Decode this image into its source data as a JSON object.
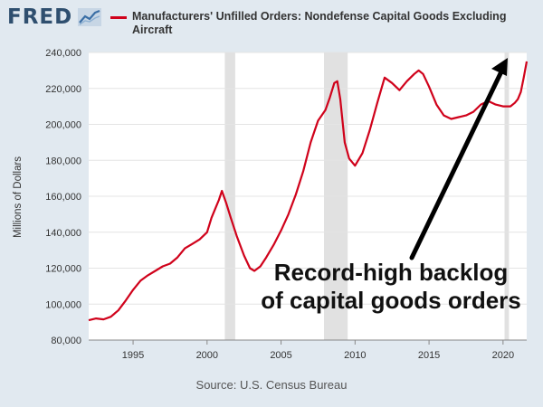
{
  "header": {
    "logo_text": "FRED",
    "logo_icon": "line-chart-icon",
    "series_title": "Manufacturers' Unfilled Orders: Nondefense Capital Goods Excluding Aircraft",
    "series_color": "#d0021b"
  },
  "footer": {
    "source": "Source: U.S. Census Bureau"
  },
  "annotation": {
    "line1": "Record-high backlog",
    "line2": "of capital goods orders"
  },
  "chart_data": {
    "type": "line",
    "title": "Manufacturers' Unfilled Orders: Nondefense Capital Goods Excluding Aircraft",
    "xlabel": "",
    "ylabel": "Millions of Dollars",
    "xlim": [
      1992.0,
      2021.6
    ],
    "ylim": [
      80000,
      240000
    ],
    "x_ticks": [
      1995,
      2000,
      2005,
      2010,
      2015,
      2020
    ],
    "x_tick_labels": [
      "1995",
      "2000",
      "2005",
      "2010",
      "2015",
      "2020"
    ],
    "y_ticks": [
      80000,
      100000,
      120000,
      140000,
      160000,
      180000,
      200000,
      220000,
      240000
    ],
    "y_tick_labels": [
      "80,000",
      "100,000",
      "120,000",
      "140,000",
      "160,000",
      "180,000",
      "200,000",
      "220,000",
      "240,000"
    ],
    "grid": true,
    "recessions": [
      [
        2001.2,
        2001.9
      ],
      [
        2007.9,
        2009.5
      ],
      [
        2020.1,
        2020.4
      ]
    ],
    "series": [
      {
        "color": "#d0021b",
        "x": [
          1992.0,
          1992.5,
          1993.0,
          1993.5,
          1994.0,
          1994.5,
          1995.0,
          1995.5,
          1996.0,
          1996.5,
          1997.0,
          1997.5,
          1998.0,
          1998.5,
          1999.0,
          1999.5,
          2000.0,
          2000.3,
          2000.6,
          2000.8,
          2001.0,
          2001.3,
          2001.6,
          2002.0,
          2002.5,
          2002.9,
          2003.2,
          2003.6,
          2004.0,
          2004.5,
          2005.0,
          2005.5,
          2006.0,
          2006.5,
          2007.0,
          2007.5,
          2008.0,
          2008.3,
          2008.6,
          2008.8,
          2009.0,
          2009.3,
          2009.6,
          2010.0,
          2010.5,
          2011.0,
          2011.5,
          2012.0,
          2012.5,
          2013.0,
          2013.5,
          2014.0,
          2014.3,
          2014.6,
          2015.0,
          2015.5,
          2016.0,
          2016.5,
          2017.0,
          2017.5,
          2018.0,
          2018.5,
          2019.0,
          2019.5,
          2020.0,
          2020.5,
          2020.8,
          2021.0,
          2021.2,
          2021.4,
          2021.6
        ],
        "y": [
          91000,
          92000,
          91500,
          93000,
          96500,
          102000,
          108000,
          113000,
          116000,
          118500,
          121000,
          122500,
          126000,
          131000,
          133500,
          136000,
          140000,
          148000,
          154000,
          158000,
          163000,
          156000,
          148000,
          138000,
          127000,
          120000,
          118500,
          121000,
          126000,
          133000,
          141000,
          150000,
          161000,
          174000,
          190000,
          202000,
          208000,
          215000,
          223000,
          224000,
          214000,
          190000,
          181000,
          177000,
          184000,
          197000,
          212000,
          226000,
          223000,
          219000,
          224000,
          228000,
          230000,
          228000,
          221000,
          211000,
          205000,
          203000,
          204000,
          205000,
          207000,
          211000,
          213000,
          211000,
          210000,
          210000,
          212000,
          214000,
          218000,
          226000,
          235000
        ]
      }
    ]
  }
}
